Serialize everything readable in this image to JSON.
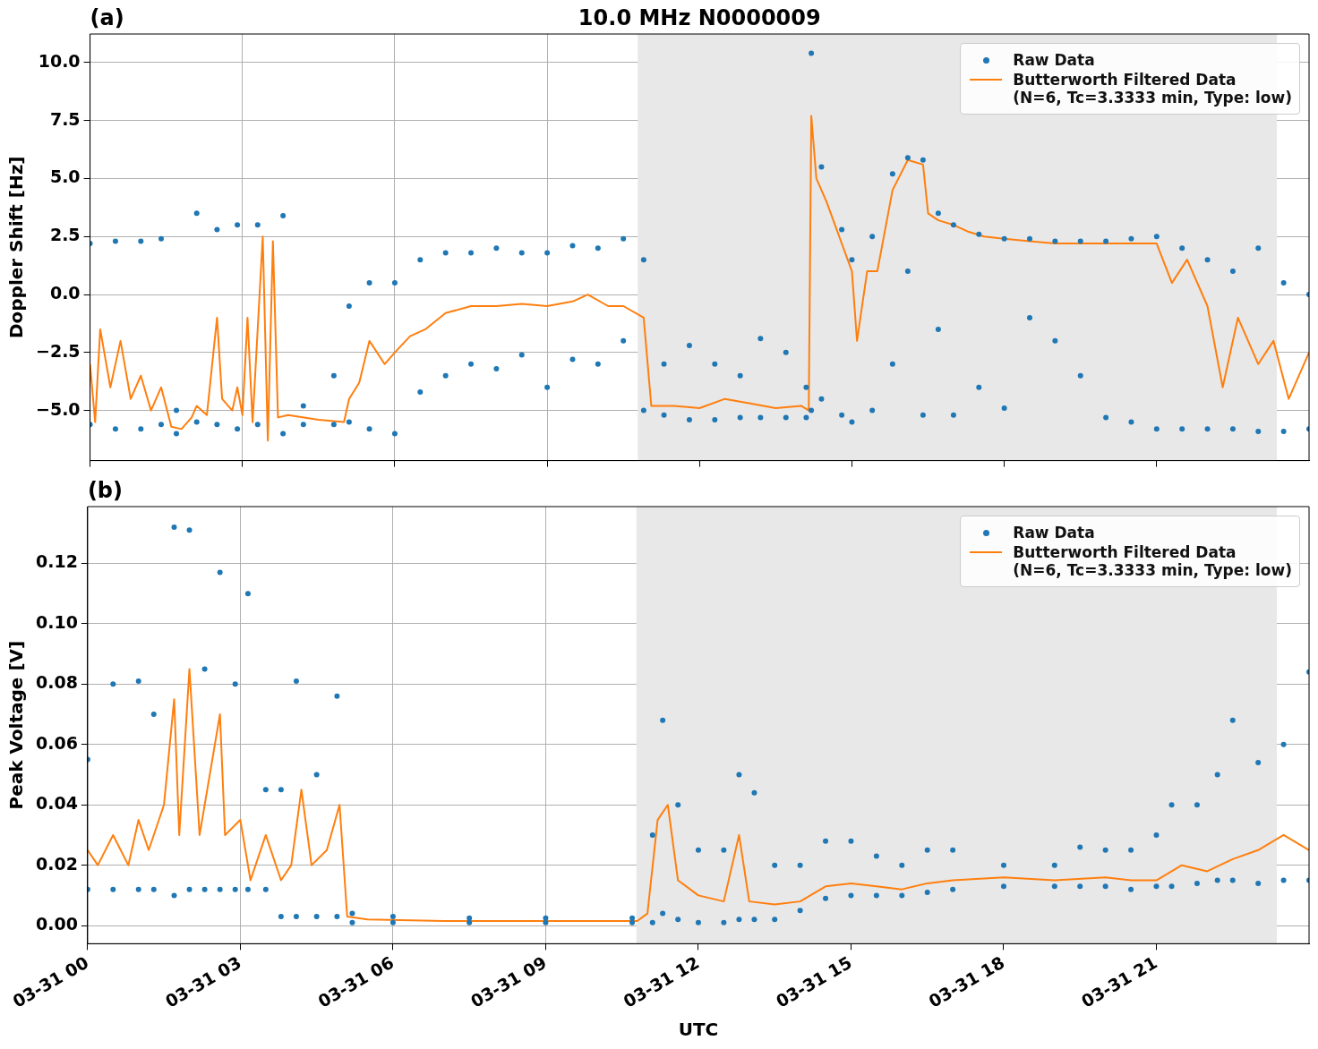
{
  "chart_data": [
    {
      "type": "scatter",
      "title": "10.0 MHz N0000009",
      "ylabel": "Doppler Shift [Hz]",
      "annotations": [
        "(a)"
      ],
      "xlim": [
        "--03-31T00:00",
        "--04-01T00:00"
      ],
      "xticks": [
        {
          "value": "--03-31T00:00",
          "label": "03-31 00"
        },
        {
          "value": "--03-31T03:00",
          "label": "03-31 03"
        },
        {
          "value": "--03-31T06:00",
          "label": "03-31 06"
        },
        {
          "value": "--03-31T09:00",
          "label": "03-31 09"
        },
        {
          "value": "--03-31T12:00",
          "label": "03-31 12"
        },
        {
          "value": "--03-31T15:00",
          "label": "03-31 15"
        },
        {
          "value": "--03-31T18:00",
          "label": "03-31 18"
        },
        {
          "value": "--03-31T21:00",
          "label": "03-31 21"
        }
      ],
      "ylim": [
        -7.16,
        11.23
      ],
      "yticks": [
        {
          "value": -5,
          "label": "−5.0"
        },
        {
          "value": -2.5,
          "label": "−2.5"
        },
        {
          "value": 0,
          "label": "0.0"
        },
        {
          "value": 2.5,
          "label": "2.5"
        },
        {
          "value": 5,
          "label": "5.0"
        },
        {
          "value": 7.5,
          "label": "7.5"
        },
        {
          "value": 10,
          "label": "10.0"
        }
      ],
      "tick_labels": "y",
      "grid": true,
      "legend": "top right",
      "marker": "circle",
      "bands": [
        {
          "axis": "x",
          "from": "--03-31T10:47",
          "to": "--03-31T23:22",
          "color": "#e8e8e8"
        }
      ],
      "series": [
        {
          "name": "Raw Data",
          "type": "scatter",
          "color": "#1f77b4",
          "x": [
            "--03-31T00:00",
            "--03-31T00:00",
            "--03-31T00:30",
            "--03-31T00:30",
            "--03-31T01:00",
            "--03-31T01:00",
            "--03-31T01:24",
            "--03-31T01:24",
            "--03-31T01:42",
            "--03-31T01:42",
            "--03-31T02:06",
            "--03-31T02:06",
            "--03-31T02:30",
            "--03-31T02:30",
            "--03-31T02:54",
            "--03-31T02:54",
            "--03-31T03:18",
            "--03-31T03:18",
            "--03-31T03:48",
            "--03-31T03:48",
            "--03-31T04:12",
            "--03-31T04:12",
            "--03-31T04:48",
            "--03-31T04:48",
            "--03-31T05:06",
            "--03-31T05:06",
            "--03-31T05:30",
            "--03-31T05:30",
            "--03-31T06:00",
            "--03-31T06:00",
            "--03-31T06:30",
            "--03-31T06:30",
            "--03-31T07:00",
            "--03-31T07:00",
            "--03-31T07:30",
            "--03-31T07:30",
            "--03-31T08:00",
            "--03-31T08:00",
            "--03-31T08:30",
            "--03-31T08:30",
            "--03-31T09:00",
            "--03-31T09:00",
            "--03-31T09:30",
            "--03-31T09:30",
            "--03-31T10:00",
            "--03-31T10:00",
            "--03-31T10:30",
            "--03-31T10:30",
            "--03-31T10:54",
            "--03-31T10:54",
            "--03-31T11:18",
            "--03-31T11:18",
            "--03-31T11:48",
            "--03-31T11:48",
            "--03-31T12:18",
            "--03-31T12:18",
            "--03-31T12:48",
            "--03-31T12:48",
            "--03-31T13:12",
            "--03-31T13:12",
            "--03-31T13:42",
            "--03-31T13:42",
            "--03-31T14:06",
            "--03-31T14:06",
            "--03-31T14:12",
            "--03-31T14:12",
            "--03-31T14:24",
            "--03-31T14:24",
            "--03-31T14:48",
            "--03-31T14:48",
            "--03-31T15:00",
            "--03-31T15:00",
            "--03-31T15:24",
            "--03-31T15:24",
            "--03-31T15:48",
            "--03-31T15:48",
            "--03-31T16:06",
            "--03-31T16:06",
            "--03-31T16:24",
            "--03-31T16:24",
            "--03-31T16:42",
            "--03-31T16:42",
            "--03-31T17:00",
            "--03-31T17:00",
            "--03-31T17:30",
            "--03-31T17:30",
            "--03-31T18:00",
            "--03-31T18:00",
            "--03-31T18:30",
            "--03-31T18:30",
            "--03-31T19:00",
            "--03-31T19:00",
            "--03-31T19:30",
            "--03-31T19:30",
            "--03-31T20:00",
            "--03-31T20:00",
            "--03-31T20:30",
            "--03-31T20:30",
            "--03-31T21:00",
            "--03-31T21:00",
            "--03-31T21:30",
            "--03-31T21:30",
            "--03-31T22:00",
            "--03-31T22:00",
            "--03-31T22:30",
            "--03-31T22:30",
            "--03-31T23:00",
            "--03-31T23:00",
            "--03-31T23:30",
            "--03-31T23:30",
            "--04-01T00:00",
            "--04-01T00:00"
          ],
          "values": [
            2.2,
            -5.6,
            2.3,
            -5.8,
            2.3,
            -5.8,
            2.4,
            -5.6,
            -5,
            -6,
            3.5,
            -5.5,
            2.8,
            -5.6,
            3,
            -5.8,
            3,
            -5.6,
            3.4,
            -6,
            -4.8,
            -5.6,
            -3.5,
            -5.6,
            -0.5,
            -5.5,
            0.5,
            -5.8,
            0.5,
            -6,
            1.5,
            -4.2,
            1.8,
            -3.5,
            1.8,
            -3,
            2,
            -3.2,
            1.8,
            -2.6,
            1.8,
            -4,
            2.1,
            -2.8,
            2,
            -3,
            2.4,
            -2,
            1.5,
            -5,
            -3,
            -5.2,
            -2.2,
            -5.4,
            -3,
            -5.4,
            -3.5,
            -5.3,
            -1.9,
            -5.3,
            -2.5,
            -5.3,
            -4,
            -5.3,
            10.4,
            -5,
            5.5,
            -4.5,
            2.8,
            -5.2,
            1.5,
            -5.5,
            2.5,
            -5,
            5.2,
            -3,
            5.9,
            1,
            5.8,
            -5.2,
            3.5,
            -1.5,
            3,
            -5.2,
            2.6,
            -4,
            2.4,
            -4.9,
            2.4,
            -1,
            2.3,
            -2,
            2.3,
            -3.5,
            2.3,
            -5.3,
            2.4,
            -5.5,
            2.5,
            -5.8,
            2,
            -5.8,
            1.5,
            -5.8,
            1,
            -5.8,
            2,
            -5.9,
            0.5,
            -5.9,
            0,
            -5.8
          ]
        },
        {
          "name": "Butterworth Filtered Data\n(N=6, Tc=3.3333 min, Type: low)",
          "type": "line",
          "marker": "none",
          "color": "#ff7f0e",
          "x": [
            "--03-31T00:00",
            "--03-31T00:06",
            "--03-31T00:12",
            "--03-31T00:24",
            "--03-31T00:36",
            "--03-31T00:48",
            "--03-31T01:00",
            "--03-31T01:12",
            "--03-31T01:24",
            "--03-31T01:36",
            "--03-31T01:48",
            "--03-31T02:00",
            "--03-31T02:06",
            "--03-31T02:18",
            "--03-31T02:30",
            "--03-31T02:36",
            "--03-31T02:48",
            "--03-31T02:54",
            "--03-31T03:00",
            "--03-31T03:06",
            "--03-31T03:12",
            "--03-31T03:24",
            "--03-31T03:30",
            "--03-31T03:36",
            "--03-31T03:42",
            "--03-31T03:54",
            "--03-31T04:30",
            "--03-31T05:00",
            "--03-31T05:06",
            "--03-31T05:18",
            "--03-31T05:30",
            "--03-31T05:48",
            "--03-31T06:00",
            "--03-31T06:18",
            "--03-31T06:36",
            "--03-31T07:00",
            "--03-31T07:30",
            "--03-31T08:00",
            "--03-31T08:30",
            "--03-31T09:00",
            "--03-31T09:30",
            "--03-31T09:48",
            "--03-31T10:12",
            "--03-31T10:30",
            "--03-31T10:54",
            "--03-31T11:03",
            "--03-31T11:30",
            "--03-31T12:00",
            "--03-31T12:30",
            "--03-31T13:00",
            "--03-31T13:30",
            "--03-31T14:00",
            "--03-31T14:09",
            "--03-31T14:12",
            "--03-31T14:18",
            "--03-31T14:30",
            "--03-31T14:48",
            "--03-31T15:00",
            "--03-31T15:06",
            "--03-31T15:18",
            "--03-31T15:30",
            "--03-31T15:48",
            "--03-31T16:06",
            "--03-31T16:24",
            "--03-31T16:30",
            "--03-31T16:42",
            "--03-31T17:00",
            "--03-31T17:18",
            "--03-31T17:36",
            "--03-31T18:00",
            "--03-31T18:30",
            "--03-31T19:00",
            "--03-31T20:00",
            "--03-31T21:00",
            "--03-31T21:18",
            "--03-31T21:36",
            "--03-31T22:00",
            "--03-31T22:18",
            "--03-31T22:36",
            "--03-31T23:00",
            "--03-31T23:18",
            "--03-31T23:36",
            "--04-01T00:00"
          ],
          "values": [
            -3,
            -5.5,
            -1.5,
            -4,
            -2,
            -4.5,
            -3.5,
            -5,
            -4,
            -5.7,
            -5.8,
            -5.3,
            -4.8,
            -5.2,
            -1,
            -4.5,
            -5,
            -4,
            -5.2,
            -1,
            -5.5,
            2.5,
            -6.3,
            2.3,
            -5.3,
            -5.2,
            -5.4,
            -5.5,
            -4.5,
            -3.8,
            -2,
            -3,
            -2.5,
            -1.8,
            -1.5,
            -0.8,
            -0.5,
            -0.5,
            -0.4,
            -0.5,
            -0.3,
            0,
            -0.5,
            -0.5,
            -1,
            -4.8,
            -4.8,
            -4.9,
            -4.5,
            -4.7,
            -4.9,
            -4.8,
            -5,
            7.7,
            5,
            4,
            2.2,
            1,
            -2,
            1,
            1,
            4.5,
            5.8,
            5.6,
            3.5,
            3.2,
            3,
            2.7,
            2.5,
            2.4,
            2.3,
            2.2,
            2.2,
            2.2,
            0.5,
            1.5,
            -0.5,
            -4,
            -1,
            -3,
            -2,
            -4.5,
            -2.5
          ]
        }
      ]
    },
    {
      "type": "scatter",
      "ylabel": "Peak Voltage [V]",
      "xlabel": "UTC",
      "annotations": [
        "(b)"
      ],
      "xlim": [
        "--03-31T00:00",
        "--04-01T00:00"
      ],
      "xticks": [
        {
          "value": "--03-31T00:00",
          "label": "03-31 00"
        },
        {
          "value": "--03-31T03:00",
          "label": "03-31 03"
        },
        {
          "value": "--03-31T06:00",
          "label": "03-31 06"
        },
        {
          "value": "--03-31T09:00",
          "label": "03-31 09"
        },
        {
          "value": "--03-31T12:00",
          "label": "03-31 12"
        },
        {
          "value": "--03-31T15:00",
          "label": "03-31 15"
        },
        {
          "value": "--03-31T18:00",
          "label": "03-31 18"
        },
        {
          "value": "--03-31T21:00",
          "label": "03-31 21"
        }
      ],
      "ylim": [
        -0.006,
        0.1388
      ],
      "yticks": [
        {
          "value": 0,
          "label": "0.00"
        },
        {
          "value": 0.02,
          "label": "0.02"
        },
        {
          "value": 0.04,
          "label": "0.04"
        },
        {
          "value": 0.06,
          "label": "0.06"
        },
        {
          "value": 0.08,
          "label": "0.08"
        },
        {
          "value": 0.1,
          "label": "0.10"
        },
        {
          "value": 0.12,
          "label": "0.12"
        }
      ],
      "grid": true,
      "legend": "top right",
      "marker": "circle",
      "bands": [
        {
          "axis": "x",
          "from": "--03-31T10:47",
          "to": "--03-31T23:22",
          "color": "#e8e8e8"
        }
      ],
      "series": [
        {
          "name": "Raw Data",
          "type": "scatter",
          "color": "#1f77b4",
          "x": [
            "--03-31T00:00",
            "--03-31T00:00",
            "--03-31T00:30",
            "--03-31T00:30",
            "--03-31T01:00",
            "--03-31T01:00",
            "--03-31T01:18",
            "--03-31T01:18",
            "--03-31T01:42",
            "--03-31T01:42",
            "--03-31T02:00",
            "--03-31T02:00",
            "--03-31T02:18",
            "--03-31T02:18",
            "--03-31T02:36",
            "--03-31T02:36",
            "--03-31T02:54",
            "--03-31T02:54",
            "--03-31T03:09",
            "--03-31T03:09",
            "--03-31T03:30",
            "--03-31T03:30",
            "--03-31T03:48",
            "--03-31T03:48",
            "--03-31T04:06",
            "--03-31T04:06",
            "--03-31T04:30",
            "--03-31T04:30",
            "--03-31T04:54",
            "--03-31T04:54",
            "--03-31T05:12",
            "--03-31T05:12",
            "--03-31T06:00",
            "--03-31T06:00",
            "--03-31T07:30",
            "--03-31T07:30",
            "--03-31T09:00",
            "--03-31T09:00",
            "--03-31T10:42",
            "--03-31T10:42",
            "--03-31T11:06",
            "--03-31T11:06",
            "--03-31T11:18",
            "--03-31T11:18",
            "--03-31T11:36",
            "--03-31T11:36",
            "--03-31T12:00",
            "--03-31T12:00",
            "--03-31T12:30",
            "--03-31T12:30",
            "--03-31T12:48",
            "--03-31T12:48",
            "--03-31T13:06",
            "--03-31T13:06",
            "--03-31T13:30",
            "--03-31T13:30",
            "--03-31T14:00",
            "--03-31T14:00",
            "--03-31T14:30",
            "--03-31T14:30",
            "--03-31T15:00",
            "--03-31T15:00",
            "--03-31T15:30",
            "--03-31T15:30",
            "--03-31T16:00",
            "--03-31T16:00",
            "--03-31T16:30",
            "--03-31T16:30",
            "--03-31T17:00",
            "--03-31T17:00",
            "--03-31T18:00",
            "--03-31T18:00",
            "--03-31T19:00",
            "--03-31T19:00",
            "--03-31T19:30",
            "--03-31T19:30",
            "--03-31T20:00",
            "--03-31T20:00",
            "--03-31T20:30",
            "--03-31T20:30",
            "--03-31T21:00",
            "--03-31T21:00",
            "--03-31T21:18",
            "--03-31T21:18",
            "--03-31T21:48",
            "--03-31T21:48",
            "--03-31T22:12",
            "--03-31T22:12",
            "--03-31T22:30",
            "--03-31T22:30",
            "--03-31T23:00",
            "--03-31T23:00",
            "--03-31T23:30",
            "--03-31T23:30",
            "--04-01T00:00",
            "--04-01T00:00"
          ],
          "values": [
            0.055,
            0.012,
            0.08,
            0.012,
            0.081,
            0.012,
            0.07,
            0.012,
            0.132,
            0.01,
            0.131,
            0.012,
            0.085,
            0.012,
            0.117,
            0.012,
            0.08,
            0.012,
            0.11,
            0.012,
            0.045,
            0.012,
            0.045,
            0.003,
            0.081,
            0.003,
            0.05,
            0.003,
            0.076,
            0.003,
            0.004,
            0.001,
            0.003,
            0.001,
            0.0025,
            0.001,
            0.0025,
            0.001,
            0.0025,
            0.001,
            0.03,
            0.001,
            0.068,
            0.004,
            0.04,
            0.002,
            0.025,
            0.001,
            0.025,
            0.001,
            0.05,
            0.002,
            0.044,
            0.002,
            0.02,
            0.002,
            0.02,
            0.005,
            0.028,
            0.009,
            0.028,
            0.01,
            0.023,
            0.01,
            0.02,
            0.01,
            0.025,
            0.011,
            0.025,
            0.012,
            0.02,
            0.013,
            0.02,
            0.013,
            0.026,
            0.013,
            0.025,
            0.013,
            0.025,
            0.012,
            0.03,
            0.013,
            0.04,
            0.013,
            0.04,
            0.014,
            0.05,
            0.015,
            0.068,
            0.015,
            0.054,
            0.014,
            0.06,
            0.015,
            0.084,
            0.015
          ]
        },
        {
          "name": "Butterworth Filtered Data\n(N=6, Tc=3.3333 min, Type: low)",
          "type": "line",
          "marker": "none",
          "color": "#ff7f0e",
          "x": [
            "--03-31T00:00",
            "--03-31T00:12",
            "--03-31T00:30",
            "--03-31T00:48",
            "--03-31T01:00",
            "--03-31T01:12",
            "--03-31T01:30",
            "--03-31T01:42",
            "--03-31T01:48",
            "--03-31T02:00",
            "--03-31T02:12",
            "--03-31T02:36",
            "--03-31T02:42",
            "--03-31T03:00",
            "--03-31T03:12",
            "--03-31T03:30",
            "--03-31T03:48",
            "--03-31T04:00",
            "--03-31T04:12",
            "--03-31T04:24",
            "--03-31T04:42",
            "--03-31T04:57",
            "--03-31T05:06",
            "--03-31T05:30",
            "--03-31T07:00",
            "--03-31T09:00",
            "--03-31T10:48",
            "--03-31T11:00",
            "--03-31T11:12",
            "--03-31T11:24",
            "--03-31T11:36",
            "--03-31T12:00",
            "--03-31T12:30",
            "--03-31T12:48",
            "--03-31T13:00",
            "--03-31T13:30",
            "--03-31T14:00",
            "--03-31T14:30",
            "--03-31T15:00",
            "--03-31T15:30",
            "--03-31T16:00",
            "--03-31T16:30",
            "--03-31T17:00",
            "--03-31T18:00",
            "--03-31T19:00",
            "--03-31T20:00",
            "--03-31T20:30",
            "--03-31T21:00",
            "--03-31T21:30",
            "--03-31T22:00",
            "--03-31T22:30",
            "--03-31T23:00",
            "--03-31T23:30",
            "--04-01T00:00"
          ],
          "values": [
            0.025,
            0.02,
            0.03,
            0.02,
            0.035,
            0.025,
            0.04,
            0.075,
            0.03,
            0.085,
            0.03,
            0.07,
            0.03,
            0.035,
            0.015,
            0.03,
            0.015,
            0.02,
            0.045,
            0.02,
            0.025,
            0.04,
            0.003,
            0.002,
            0.0015,
            0.0015,
            0.0015,
            0.004,
            0.035,
            0.04,
            0.015,
            0.01,
            0.008,
            0.03,
            0.008,
            0.007,
            0.008,
            0.013,
            0.014,
            0.013,
            0.012,
            0.014,
            0.015,
            0.016,
            0.015,
            0.016,
            0.015,
            0.015,
            0.02,
            0.018,
            0.022,
            0.025,
            0.03,
            0.025
          ]
        }
      ]
    }
  ]
}
